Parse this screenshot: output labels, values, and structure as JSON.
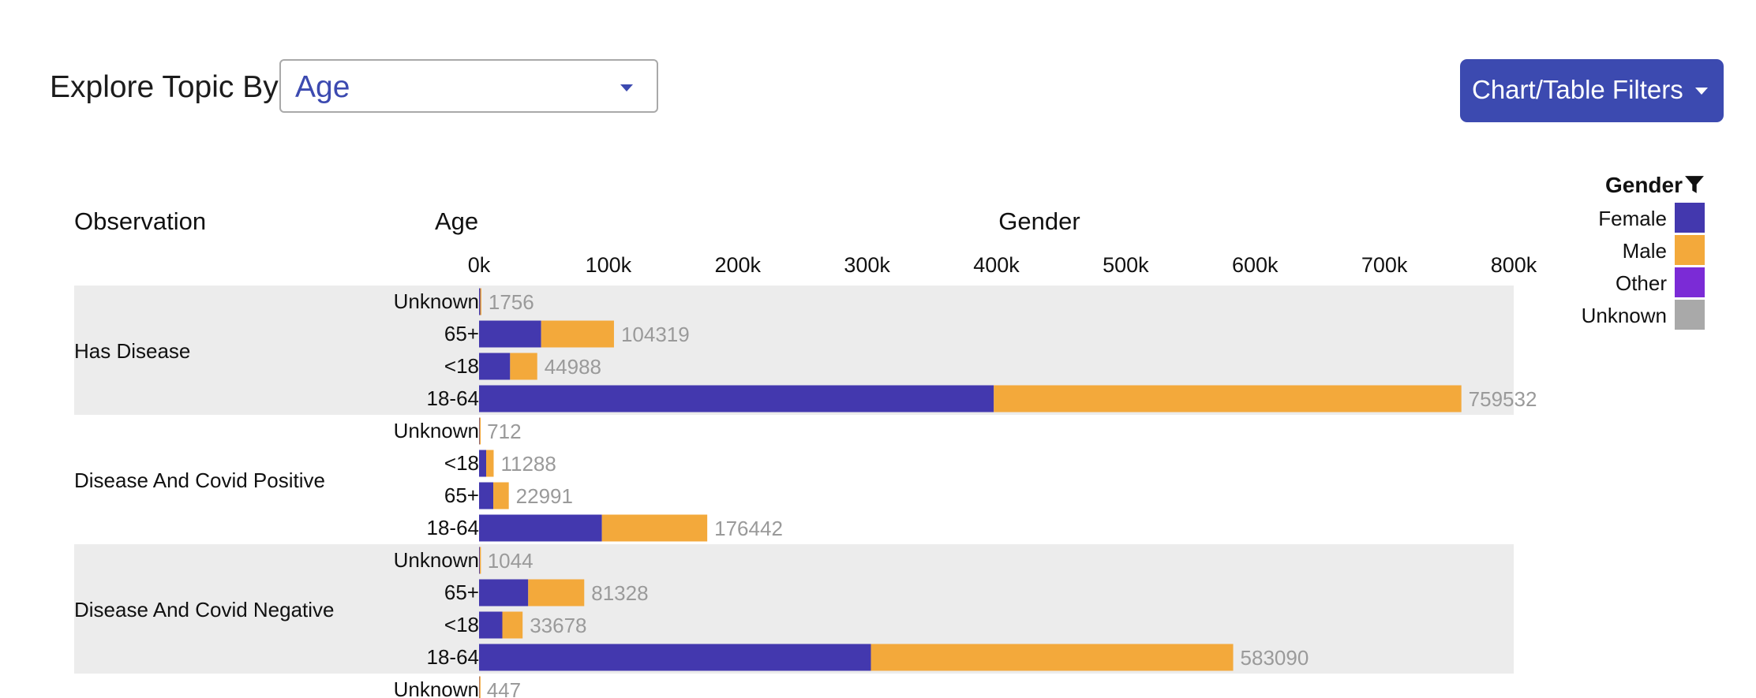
{
  "controls": {
    "topic_label": "Explore Topic By",
    "topic_value": "Age",
    "filters_button": "Chart/Table Filters"
  },
  "legend": {
    "title": "Gender",
    "icon": "filter-icon",
    "items": [
      {
        "name": "Female",
        "color": "#4338ae"
      },
      {
        "name": "Male",
        "color": "#f3a93b"
      },
      {
        "name": "Other",
        "color": "#7b2bd6"
      },
      {
        "name": "Unknown",
        "color": "#a9a9a9"
      }
    ]
  },
  "chart_data": {
    "type": "bar",
    "orientation": "horizontal",
    "stacked": true,
    "headers": {
      "observation": "Observation",
      "age": "Age",
      "gender": "Gender"
    },
    "xlim": [
      0,
      800000
    ],
    "x_ticks": [
      "0k",
      "100k",
      "200k",
      "300k",
      "400k",
      "500k",
      "600k",
      "700k",
      "800k"
    ],
    "series_names": [
      "Female",
      "Male",
      "Other",
      "Unknown"
    ],
    "groups": [
      {
        "observation": "Has Disease",
        "shaded": true,
        "rows": [
          {
            "age": "Unknown",
            "total": 1756,
            "female": 900,
            "male": 856
          },
          {
            "age": "65+",
            "total": 104319,
            "female": 48000,
            "male": 56319
          },
          {
            "age": "<18",
            "total": 44988,
            "female": 24000,
            "male": 20988
          },
          {
            "age": "18-64",
            "total": 759532,
            "female": 398000,
            "male": 361532
          }
        ]
      },
      {
        "observation": "Disease And Covid Positive",
        "shaded": false,
        "rows": [
          {
            "age": "Unknown",
            "total": 712,
            "female": 350,
            "male": 362
          },
          {
            "age": "<18",
            "total": 11288,
            "female": 5500,
            "male": 5788
          },
          {
            "age": "65+",
            "total": 22991,
            "female": 11000,
            "male": 11991
          },
          {
            "age": "18-64",
            "total": 176442,
            "female": 95000,
            "male": 81442
          }
        ]
      },
      {
        "observation": "Disease And Covid Negative",
        "shaded": true,
        "rows": [
          {
            "age": "Unknown",
            "total": 1044,
            "female": 520,
            "male": 524
          },
          {
            "age": "65+",
            "total": 81328,
            "female": 38000,
            "male": 43328
          },
          {
            "age": "<18",
            "total": 33678,
            "female": 18000,
            "male": 15678
          },
          {
            "age": "18-64",
            "total": 583090,
            "female": 303000,
            "male": 280090
          }
        ]
      },
      {
        "observation": "",
        "shaded": false,
        "rows": [
          {
            "age": "Unknown",
            "total": 447,
            "female": 220,
            "male": 227
          }
        ]
      }
    ]
  }
}
